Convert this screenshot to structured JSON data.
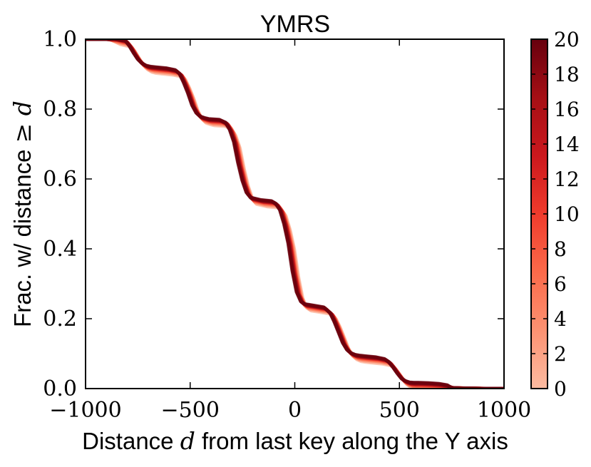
{
  "chart_data": {
    "type": "line",
    "title": "YMRS",
    "xlabel_parts": [
      "Distance ",
      "d",
      " from last key along the Y axis"
    ],
    "ylabel_parts": [
      "Frac. w/ distance ",
      "≥",
      " d"
    ],
    "xlim": [
      -1000,
      1000
    ],
    "ylim": [
      0.0,
      1.0
    ],
    "xticks": [
      -1000,
      -500,
      0,
      500,
      1000
    ],
    "xtick_labels": [
      "−1000",
      "−500",
      "0",
      "500",
      "1000"
    ],
    "yticks": [
      0.0,
      0.2,
      0.4,
      0.6,
      0.8,
      1.0
    ],
    "ytick_labels": [
      "0.0",
      "0.2",
      "0.4",
      "0.6",
      "0.8",
      "1.0"
    ],
    "grid": false,
    "colorbar": {
      "min": 0,
      "max": 20,
      "ticks": [
        0,
        2,
        4,
        6,
        8,
        10,
        12,
        14,
        16,
        18,
        20
      ],
      "tick_labels": [
        "0",
        "2",
        "4",
        "6",
        "8",
        "10",
        "12",
        "14",
        "16",
        "18",
        "20"
      ],
      "colormap": [
        "#fcbba1",
        "#fc9272",
        "#fb6a4a",
        "#ef3b2c",
        "#cb181d",
        "#a50f15",
        "#67000d"
      ]
    },
    "series_base": {
      "x": [
        -1000,
        -900,
        -850,
        -800,
        -780,
        -760,
        -740,
        -720,
        -700,
        -680,
        -650,
        -600,
        -560,
        -540,
        -520,
        -500,
        -480,
        -460,
        -440,
        -420,
        -400,
        -350,
        -320,
        -300,
        -280,
        -260,
        -240,
        -220,
        -200,
        -150,
        -100,
        -80,
        -60,
        -40,
        -20,
        0,
        20,
        40,
        60,
        80,
        100,
        150,
        180,
        200,
        220,
        240,
        260,
        280,
        300,
        320,
        350,
        400,
        440,
        460,
        480,
        500,
        520,
        540,
        560,
        580,
        600,
        650,
        700,
        720,
        740,
        760,
        800,
        900,
        1000
      ],
      "y": [
        1.0,
        1.0,
        0.997,
        0.99,
        0.975,
        0.955,
        0.937,
        0.925,
        0.918,
        0.915,
        0.913,
        0.91,
        0.905,
        0.895,
        0.87,
        0.84,
        0.805,
        0.783,
        0.772,
        0.768,
        0.765,
        0.763,
        0.755,
        0.735,
        0.7,
        0.64,
        0.59,
        0.555,
        0.54,
        0.533,
        0.53,
        0.523,
        0.505,
        0.465,
        0.41,
        0.33,
        0.27,
        0.243,
        0.235,
        0.233,
        0.231,
        0.226,
        0.21,
        0.185,
        0.155,
        0.125,
        0.105,
        0.095,
        0.09,
        0.088,
        0.086,
        0.083,
        0.078,
        0.07,
        0.055,
        0.038,
        0.023,
        0.015,
        0.011,
        0.01,
        0.01,
        0.009,
        0.007,
        0.005,
        0.003,
        0.002,
        0.001,
        0.0,
        0.0
      ]
    },
    "series": [
      {
        "color_value": 0,
        "dx": 18,
        "dy": -0.012
      },
      {
        "color_value": 2,
        "dx": 14,
        "dy": -0.009
      },
      {
        "color_value": 4,
        "dx": 10,
        "dy": -0.006
      },
      {
        "color_value": 6,
        "dx": 7,
        "dy": -0.004
      },
      {
        "color_value": 8,
        "dx": 4,
        "dy": -0.002
      },
      {
        "color_value": 10,
        "dx": 2,
        "dy": 0.0
      },
      {
        "color_value": 12,
        "dx": 0,
        "dy": 0.001
      },
      {
        "color_value": 14,
        "dx": -2,
        "dy": 0.002
      },
      {
        "color_value": 16,
        "dx": -4,
        "dy": 0.003
      },
      {
        "color_value": 17,
        "dx": -6,
        "dy": 0.004
      },
      {
        "color_value": 18,
        "dx": -8,
        "dy": 0.005
      },
      {
        "color_value": 19,
        "dx": -10,
        "dy": 0.006
      },
      {
        "color_value": 20,
        "dx": -12,
        "dy": 0.007
      }
    ]
  }
}
